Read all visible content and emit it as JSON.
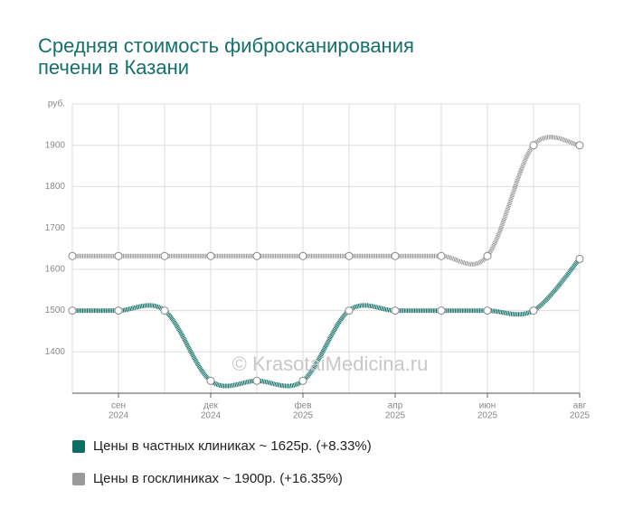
{
  "chart_data": {
    "type": "line",
    "title": [
      "Средняя стоимость фибросканирования",
      "печени в Казани"
    ],
    "y_unit": "руб.",
    "watermark": "© KrasotaiMedicina.ru",
    "categories": [
      null,
      "сен",
      null,
      "дек",
      null,
      "фев",
      null,
      "апр",
      null,
      "июн",
      null,
      "авг"
    ],
    "category_years": [
      null,
      "2024",
      null,
      "2024",
      null,
      "2025",
      null,
      "2025",
      null,
      "2025",
      null,
      "2025"
    ],
    "series": [
      {
        "name": "Цены в частных клиниках ~ 1625р. (+8.33%)",
        "color": "#0f6e64",
        "values": [
          1500,
          1500,
          1500,
          1330,
          1330,
          1330,
          1500,
          1500,
          1500,
          1500,
          1500,
          1625
        ]
      },
      {
        "name": "Цены в госклиниках ~ 1900р. (+16.35%)",
        "color": "#999999",
        "values": [
          1632,
          1632,
          1632,
          1632,
          1632,
          1632,
          1632,
          1632,
          1632,
          1632,
          1900,
          1900
        ]
      }
    ],
    "ylim": [
      1300,
      2000
    ],
    "yticks": [
      1400,
      1500,
      1600,
      1700,
      1800,
      1900
    ],
    "grid": true
  }
}
